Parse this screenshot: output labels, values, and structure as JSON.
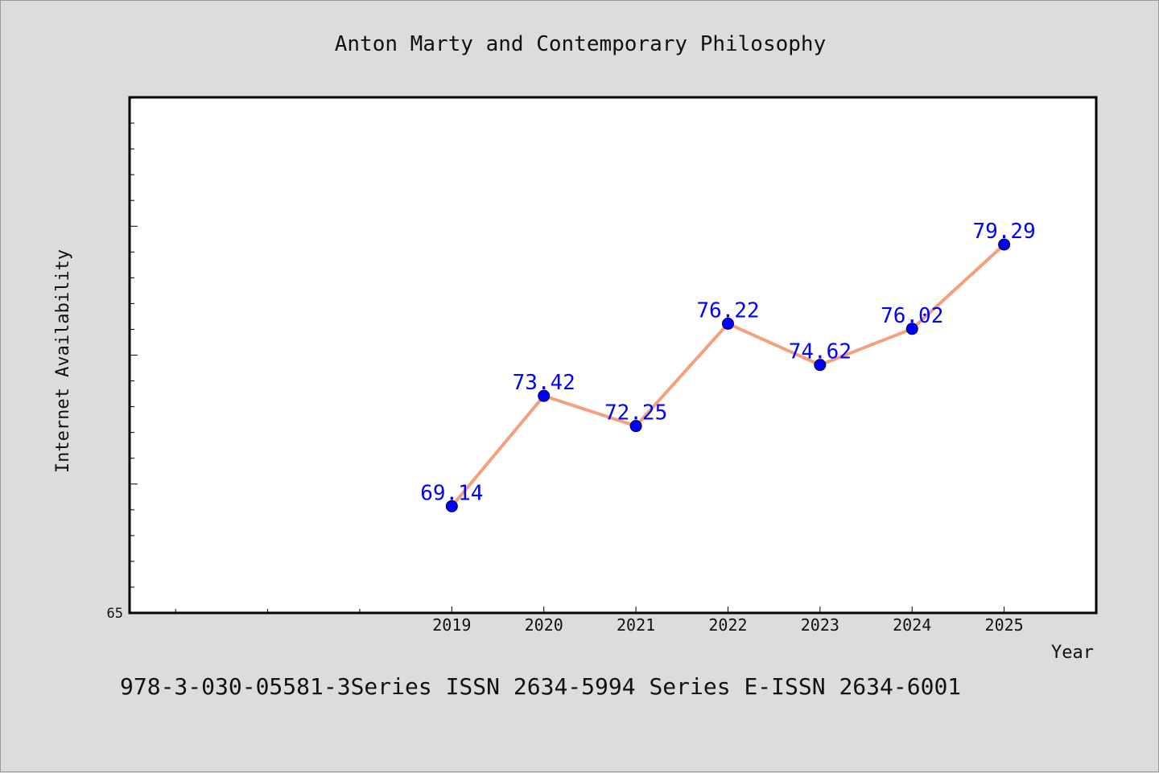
{
  "chart_data": {
    "type": "line",
    "title": "Anton Marty and Contemporary Philosophy",
    "xlabel": "Year",
    "ylabel": "Internet Availability",
    "x": [
      2019,
      2020,
      2021,
      2022,
      2023,
      2024,
      2025
    ],
    "x_tick_labels": [
      "2019",
      "2020",
      "2021",
      "2022",
      "2023",
      "2024",
      "2025"
    ],
    "xlim": [
      2015.5,
      2026
    ],
    "series": [
      {
        "values": [
          69.14,
          73.42,
          72.25,
          76.22,
          74.62,
          76.02,
          79.29
        ],
        "data_labels": [
          "69.14",
          "73.42",
          "72.25",
          "76.22",
          "74.62",
          "76.02",
          "79.29"
        ],
        "line_color": "#f4a07c",
        "marker_color": "#0000ff"
      }
    ],
    "ylim": [
      65,
      85
    ],
    "y_tick_labels": [
      {
        "value": 65,
        "label": "65"
      }
    ],
    "grid": false,
    "legend": "none"
  },
  "footer": {
    "text": "978-3-030-05581-3Series ISSN 2634-5994 Series E-ISSN 2634-6001"
  },
  "colors": {
    "background": "#dcdcdc",
    "plot_background": "#ffffff",
    "line": "#f4a07c",
    "marker": "#0000ff",
    "data_label": "#0000ff"
  }
}
